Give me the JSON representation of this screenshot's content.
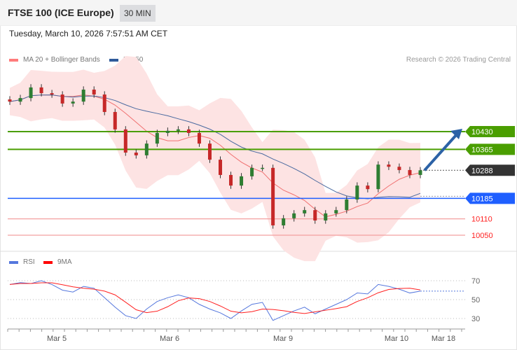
{
  "header": {
    "title": "FTSE 100 (ICE Europe)",
    "timeframe": "30 MIN"
  },
  "timestamp": "Tuesday, March 10, 2026 7:57:51 AM CET",
  "legend": {
    "ma20": "MA 20 + Bollinger Bands",
    "ma50": "MA 50",
    "rsi": "RSI",
    "rsi_ma": "9MA"
  },
  "credit": "Research © 2026 Trading Central",
  "chart_data": [
    {
      "type": "candlestick",
      "title": "FTSE 100 (ICE Europe)",
      "closes": [
        10540,
        10553,
        10592,
        10571,
        10566,
        10533,
        10540,
        10584,
        10566,
        10502,
        10438,
        10353,
        10343,
        10386,
        10425,
        10433,
        10438,
        10425,
        10386,
        10327,
        10271,
        10232,
        10266,
        10297,
        10297,
        10086,
        10112,
        10130,
        10142,
        10104,
        10130,
        10142,
        10181,
        10232,
        10219,
        10309,
        10301,
        10289,
        10271,
        10288
      ],
      "levels": [
        {
          "value": 10430,
          "label": "10430",
          "color": "#4a9e00",
          "kind": "resistance"
        },
        {
          "value": 10365,
          "label": "10365",
          "color": "#4a9e00",
          "kind": "resistance"
        },
        {
          "value": 10288,
          "label": "10288",
          "color": "#333333",
          "kind": "last"
        },
        {
          "value": 10185,
          "label": "10185",
          "color": "#1f5fff",
          "kind": "pivot"
        },
        {
          "value": 10110,
          "label": "10110",
          "color": "#ff2020",
          "kind": "support"
        },
        {
          "value": 10050,
          "label": "10050",
          "color": "#ff2020",
          "kind": "support"
        }
      ],
      "target_arrow": {
        "from": 10288,
        "to": 10430
      },
      "xticks": [
        "Mar 5",
        "Mar 6",
        "Mar 9",
        "Mar 10",
        "Mar 18"
      ],
      "colors": {
        "up": "#2e7d32",
        "down": "#c62828",
        "ma20": "#f07070",
        "ma50": "#4a6aa0",
        "band": "#fde3e3",
        "arrow": "#2c62a6"
      }
    },
    {
      "type": "line",
      "series": [
        {
          "name": "RSI",
          "color": "#5577dd",
          "values": [
            66,
            68,
            67,
            70,
            66,
            60,
            58,
            64,
            62,
            52,
            42,
            33,
            30,
            40,
            48,
            52,
            55,
            52,
            45,
            40,
            36,
            30,
            38,
            45,
            47,
            28,
            33,
            38,
            42,
            35,
            40,
            45,
            50,
            57,
            56,
            66,
            64,
            61,
            57,
            59
          ]
        },
        {
          "name": "9MA",
          "color": "#ff2020"
        }
      ],
      "yticks": [
        70,
        50,
        30
      ],
      "ylim": [
        20,
        80
      ]
    }
  ]
}
